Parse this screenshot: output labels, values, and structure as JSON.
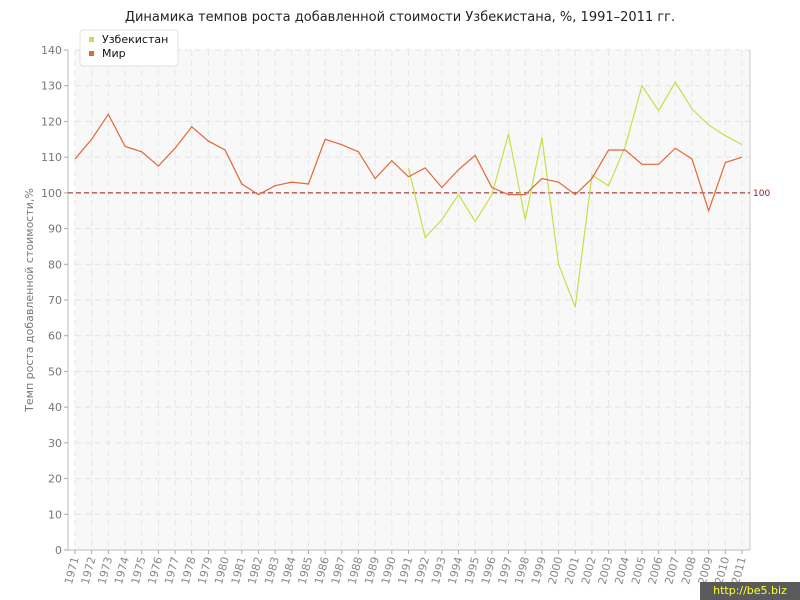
{
  "chart_data": {
    "type": "line",
    "title": "Динамика темпов роста добавленной стоимости Узбекистана, %, 1991–2011 гг.",
    "ylabel": "Темп роста добавленной стоимости,%",
    "xlabel": "",
    "ylim": [
      0,
      140
    ],
    "yticks": [
      0,
      10,
      20,
      30,
      40,
      50,
      60,
      70,
      80,
      90,
      100,
      110,
      120,
      130,
      140
    ],
    "grid": true,
    "legend_position": "top-left",
    "categories": [
      "1971",
      "1972",
      "1973",
      "1974",
      "1975",
      "1976",
      "1977",
      "1978",
      "1979",
      "1980",
      "1981",
      "1982",
      "1983",
      "1984",
      "1985",
      "1986",
      "1987",
      "1988",
      "1989",
      "1990",
      "1991",
      "1992",
      "1993",
      "1994",
      "1995",
      "1996",
      "1997",
      "1998",
      "1999",
      "2000",
      "2001",
      "2002",
      "2003",
      "2004",
      "2005",
      "2006",
      "2007",
      "2008",
      "2009",
      "2010",
      "2011"
    ],
    "series": [
      {
        "name": "Узбекистан",
        "color": "#c4e04a",
        "values": [
          null,
          null,
          null,
          null,
          null,
          null,
          null,
          null,
          null,
          null,
          null,
          null,
          null,
          null,
          null,
          null,
          null,
          null,
          null,
          null,
          107.0,
          87.5,
          92.5,
          99.5,
          92.0,
          99.5,
          116.5,
          92.5,
          115.5,
          80.0,
          68.0,
          105.0,
          102.0,
          113.0,
          130.0,
          123.0,
          131.0,
          123.5,
          119.0,
          116.0,
          113.5
        ]
      },
      {
        "name": "Мир",
        "color": "#e0683a",
        "values": [
          109.5,
          115.0,
          122.0,
          113.0,
          111.5,
          107.5,
          112.5,
          118.5,
          114.5,
          112.0,
          102.5,
          99.5,
          102.0,
          103.0,
          102.5,
          115.0,
          113.5,
          111.5,
          104.0,
          109.0,
          104.5,
          107.0,
          101.5,
          106.5,
          110.5,
          101.5,
          99.5,
          99.5,
          104.0,
          103.0,
          99.5,
          104.0,
          112.0,
          112.0,
          108.0,
          108.0,
          112.5,
          109.5,
          95.0,
          108.5,
          110.0
        ]
      }
    ],
    "reference_line": {
      "value": 100,
      "label": "100",
      "color": "#8b1f1f"
    }
  },
  "watermark": "http://be5.biz"
}
